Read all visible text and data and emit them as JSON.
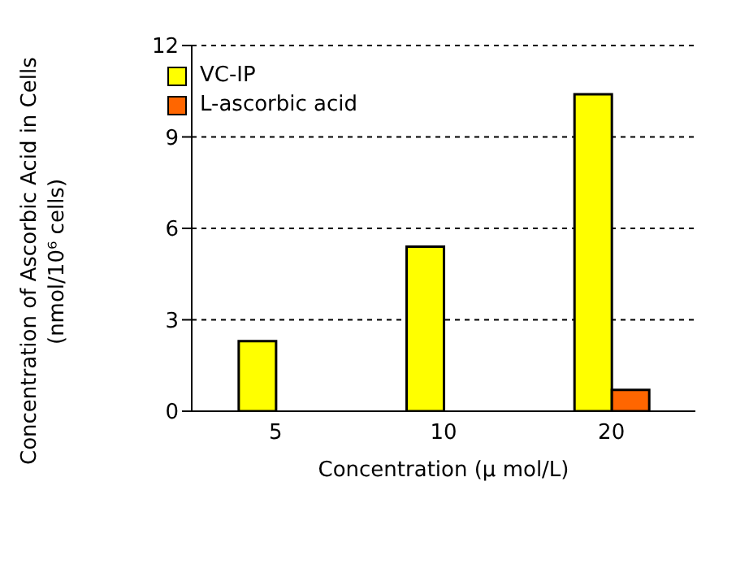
{
  "chart_data": {
    "type": "bar",
    "categories": [
      "5",
      "10",
      "20"
    ],
    "series": [
      {
        "name": "VC-IP",
        "color": "#ffff00",
        "values": [
          2.3,
          5.4,
          10.4
        ]
      },
      {
        "name": "L-ascorbic acid",
        "color": "#ff6600",
        "values": [
          null,
          null,
          0.7
        ]
      }
    ],
    "xlabel": "Concentration (μ mol/L)",
    "ylabel": "Concentration of Ascorbic Acid in Cells (nmol/10⁶ cells)",
    "ylim": [
      0,
      12
    ],
    "yticks": [
      0,
      3,
      6,
      9,
      12
    ],
    "grid": "y",
    "legend": "top left"
  }
}
